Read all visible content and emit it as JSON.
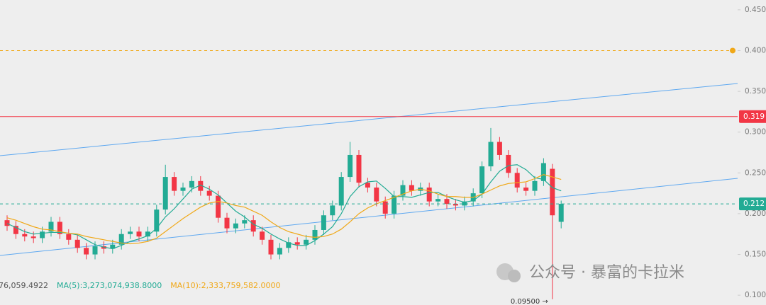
{
  "chart_data": {
    "type": "candlestick",
    "open": [
      0.192,
      0.185,
      0.175,
      0.172,
      0.17,
      0.178,
      0.19,
      0.175,
      0.168,
      0.158,
      0.15,
      0.16,
      0.157,
      0.162,
      0.175,
      0.178,
      0.172,
      0.178,
      0.205,
      0.245,
      0.228,
      0.232,
      0.24,
      0.228,
      0.222,
      0.195,
      0.182,
      0.188,
      0.192,
      0.178,
      0.168,
      0.15,
      0.158,
      0.165,
      0.162,
      0.168,
      0.18,
      0.198,
      0.21,
      0.245,
      0.272,
      0.238,
      0.232,
      0.215,
      0.2,
      0.222,
      0.235,
      0.228,
      0.232,
      0.215,
      0.218,
      0.212,
      0.21,
      0.215,
      0.225,
      0.258,
      0.288,
      0.272,
      0.25,
      0.232,
      0.228,
      0.24,
      0.255,
      0.19
    ],
    "high": [
      0.198,
      0.191,
      0.181,
      0.178,
      0.184,
      0.196,
      0.196,
      0.181,
      0.174,
      0.164,
      0.166,
      0.166,
      0.168,
      0.181,
      0.184,
      0.184,
      0.184,
      0.211,
      0.26,
      0.251,
      0.238,
      0.246,
      0.246,
      0.234,
      0.228,
      0.201,
      0.194,
      0.198,
      0.198,
      0.184,
      0.174,
      0.164,
      0.171,
      0.171,
      0.174,
      0.186,
      0.204,
      0.216,
      0.251,
      0.288,
      0.278,
      0.244,
      0.238,
      0.221,
      0.228,
      0.241,
      0.241,
      0.238,
      0.238,
      0.224,
      0.224,
      0.218,
      0.221,
      0.231,
      0.264,
      0.305,
      0.294,
      0.278,
      0.256,
      0.238,
      0.246,
      0.268,
      0.261,
      0.216
    ],
    "low": [
      0.179,
      0.169,
      0.166,
      0.164,
      0.164,
      0.172,
      0.169,
      0.162,
      0.152,
      0.144,
      0.144,
      0.151,
      0.151,
      0.156,
      0.169,
      0.166,
      0.166,
      0.172,
      0.199,
      0.222,
      0.222,
      0.226,
      0.222,
      0.216,
      0.189,
      0.176,
      0.176,
      0.182,
      0.172,
      0.162,
      0.144,
      0.144,
      0.152,
      0.156,
      0.156,
      0.162,
      0.174,
      0.192,
      0.204,
      0.239,
      0.232,
      0.226,
      0.209,
      0.194,
      0.194,
      0.216,
      0.222,
      0.222,
      0.209,
      0.209,
      0.206,
      0.204,
      0.204,
      0.209,
      0.219,
      0.252,
      0.266,
      0.244,
      0.226,
      0.222,
      0.222,
      0.234,
      0.095,
      0.182
    ],
    "close": [
      0.185,
      0.175,
      0.172,
      0.17,
      0.178,
      0.19,
      0.175,
      0.168,
      0.158,
      0.15,
      0.16,
      0.157,
      0.162,
      0.175,
      0.178,
      0.172,
      0.178,
      0.205,
      0.245,
      0.228,
      0.232,
      0.24,
      0.228,
      0.222,
      0.195,
      0.182,
      0.188,
      0.192,
      0.178,
      0.168,
      0.15,
      0.158,
      0.165,
      0.162,
      0.168,
      0.18,
      0.198,
      0.21,
      0.245,
      0.272,
      0.238,
      0.232,
      0.215,
      0.2,
      0.222,
      0.235,
      0.228,
      0.232,
      0.215,
      0.218,
      0.212,
      0.21,
      0.215,
      0.225,
      0.258,
      0.288,
      0.272,
      0.25,
      0.232,
      0.228,
      0.24,
      0.262,
      0.198,
      0.212
    ],
    "up_color": "#22ab94",
    "down_color": "#f23645",
    "ma_lines": [
      {
        "color": "#22ab94",
        "values": [
          0.188,
          0.183,
          0.178,
          0.175,
          0.176,
          0.177,
          0.177,
          0.176,
          0.174,
          0.168,
          0.162,
          0.159,
          0.157,
          0.161,
          0.166,
          0.169,
          0.173,
          0.182,
          0.196,
          0.206,
          0.218,
          0.23,
          0.235,
          0.23,
          0.223,
          0.213,
          0.203,
          0.196,
          0.187,
          0.182,
          0.175,
          0.169,
          0.164,
          0.161,
          0.161,
          0.167,
          0.175,
          0.184,
          0.2,
          0.221,
          0.233,
          0.239,
          0.24,
          0.231,
          0.221,
          0.221,
          0.22,
          0.223,
          0.226,
          0.226,
          0.221,
          0.217,
          0.214,
          0.216,
          0.224,
          0.239,
          0.252,
          0.259,
          0.26,
          0.254,
          0.244,
          0.242,
          0.232,
          0.228
        ]
      },
      {
        "color": "#f0a818",
        "values": [
          0.195,
          0.192,
          0.188,
          0.184,
          0.181,
          0.18,
          0.178,
          0.176,
          0.175,
          0.172,
          0.17,
          0.168,
          0.166,
          0.164,
          0.163,
          0.164,
          0.166,
          0.17,
          0.178,
          0.186,
          0.194,
          0.201,
          0.208,
          0.213,
          0.215,
          0.213,
          0.21,
          0.208,
          0.203,
          0.198,
          0.19,
          0.183,
          0.178,
          0.175,
          0.172,
          0.171,
          0.172,
          0.175,
          0.181,
          0.19,
          0.2,
          0.207,
          0.212,
          0.216,
          0.22,
          0.224,
          0.228,
          0.23,
          0.228,
          0.224,
          0.221,
          0.221,
          0.22,
          0.22,
          0.224,
          0.229,
          0.234,
          0.237,
          0.238,
          0.239,
          0.243,
          0.248,
          0.245,
          0.242
        ]
      }
    ],
    "ylim": [
      0.088,
      0.462
    ],
    "yticks": [
      {
        "value": 0.1,
        "label": "0.100"
      },
      {
        "value": 0.15,
        "label": "0.150"
      },
      {
        "value": 0.2,
        "label": "0.200"
      },
      {
        "value": 0.25,
        "label": "0.250"
      },
      {
        "value": 0.3,
        "label": "0.300"
      },
      {
        "value": 0.35,
        "label": "0.350"
      },
      {
        "value": 0.4,
        "label": "0.400"
      },
      {
        "value": 0.45,
        "label": "0.450"
      }
    ],
    "price_lines": [
      {
        "value": 0.319,
        "label": "0.319",
        "color": "#f23645",
        "style": "solid"
      },
      {
        "value": 0.212,
        "label": "0.212",
        "color": "#22ab94",
        "style": "dashed"
      },
      {
        "value": 0.4,
        "color": "#f0a818",
        "style": "dashed"
      }
    ],
    "low_label": "0.09500 →",
    "indicator_labels": [
      {
        "text": "76,059.4922",
        "color": "#555555"
      },
      {
        "text": "MA(5):3,273,074,938.8000",
        "color": "#22ab94"
      },
      {
        "text": "MA(10):2,333,759,582.0000",
        "color": "#f0a818"
      }
    ],
    "watermark": "公众号 · 暴富的卡拉米"
  }
}
